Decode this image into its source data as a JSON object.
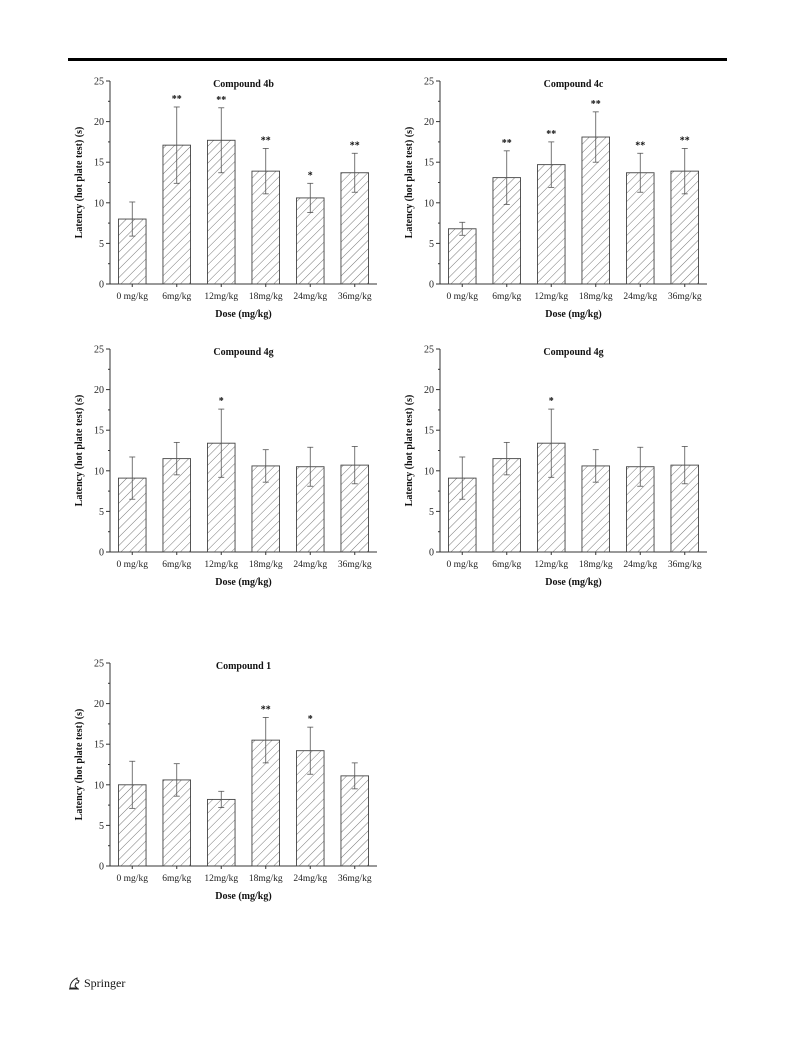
{
  "footer": {
    "publisher": "Springer",
    "icon": "springer-horse-icon"
  },
  "chart_data": [
    {
      "type": "bar",
      "title": "Compound 4b",
      "xlabel": "Dose (mg/kg)",
      "ylabel": "Latency (hot plate test) (s)",
      "ylim": [
        0,
        25
      ],
      "yticks": [
        0,
        5,
        10,
        15,
        20,
        25
      ],
      "categories": [
        "0 mg/kg",
        "6mg/kg",
        "12mg/kg",
        "18mg/kg",
        "24mg/kg",
        "36mg/kg"
      ],
      "values": [
        8.0,
        17.1,
        17.7,
        13.9,
        10.6,
        13.7
      ],
      "errors": [
        2.1,
        4.7,
        4.0,
        2.8,
        1.8,
        2.4
      ],
      "significance": [
        "",
        "**",
        "**",
        "**",
        "*",
        "**"
      ]
    },
    {
      "type": "bar",
      "title": "Compound 4c",
      "xlabel": "Dose (mg/kg)",
      "ylabel": "Latency (hot plate test) (s)",
      "ylim": [
        0,
        25
      ],
      "yticks": [
        0,
        5,
        10,
        15,
        20,
        25
      ],
      "categories": [
        "0 mg/kg",
        "6mg/kg",
        "12mg/kg",
        "18mg/kg",
        "24mg/kg",
        "36mg/kg"
      ],
      "values": [
        6.8,
        13.1,
        14.7,
        18.1,
        13.7,
        13.9
      ],
      "errors": [
        0.8,
        3.3,
        2.8,
        3.1,
        2.4,
        2.8
      ],
      "significance": [
        "",
        "**",
        "**",
        "**",
        "**",
        "**"
      ]
    },
    {
      "type": "bar",
      "title": "Compound 4g",
      "xlabel": "Dose (mg/kg)",
      "ylabel": "Latency (hot plate test) (s)",
      "ylim": [
        0,
        25
      ],
      "yticks": [
        0,
        5,
        10,
        15,
        20,
        25
      ],
      "categories": [
        "0 mg/kg",
        "6mg/kg",
        "12mg/kg",
        "18mg/kg",
        "24mg/kg",
        "36mg/kg"
      ],
      "values": [
        9.1,
        11.5,
        13.4,
        10.6,
        10.5,
        10.7
      ],
      "errors": [
        2.6,
        2.0,
        4.2,
        2.0,
        2.4,
        2.3
      ],
      "significance": [
        "",
        "",
        "*",
        "",
        "",
        ""
      ]
    },
    {
      "type": "bar",
      "title": "Compound 4g",
      "xlabel": "Dose (mg/kg)",
      "ylabel": "Latency (hot plate test) (s)",
      "ylim": [
        0,
        25
      ],
      "yticks": [
        0,
        5,
        10,
        15,
        20,
        25
      ],
      "categories": [
        "0 mg/kg",
        "6mg/kg",
        "12mg/kg",
        "18mg/kg",
        "24mg/kg",
        "36mg/kg"
      ],
      "values": [
        9.1,
        11.5,
        13.4,
        10.6,
        10.5,
        10.7
      ],
      "errors": [
        2.6,
        2.0,
        4.2,
        2.0,
        2.4,
        2.3
      ],
      "significance": [
        "",
        "",
        "*",
        "",
        "",
        ""
      ]
    },
    {
      "type": "bar",
      "title": "Compound 1",
      "xlabel": "Dose (mg/kg)",
      "ylabel": "Latency (hot plate test) (s)",
      "ylim": [
        0,
        25
      ],
      "yticks": [
        0,
        5,
        10,
        15,
        20,
        25
      ],
      "categories": [
        "0 mg/kg",
        "6mg/kg",
        "12mg/kg",
        "18mg/kg",
        "24mg/kg",
        "36mg/kg"
      ],
      "values": [
        10.0,
        10.6,
        8.2,
        15.5,
        14.2,
        11.1
      ],
      "errors": [
        2.9,
        2.0,
        1.0,
        2.8,
        2.9,
        1.6
      ],
      "significance": [
        "",
        "",
        "",
        "**",
        "*",
        ""
      ]
    }
  ]
}
